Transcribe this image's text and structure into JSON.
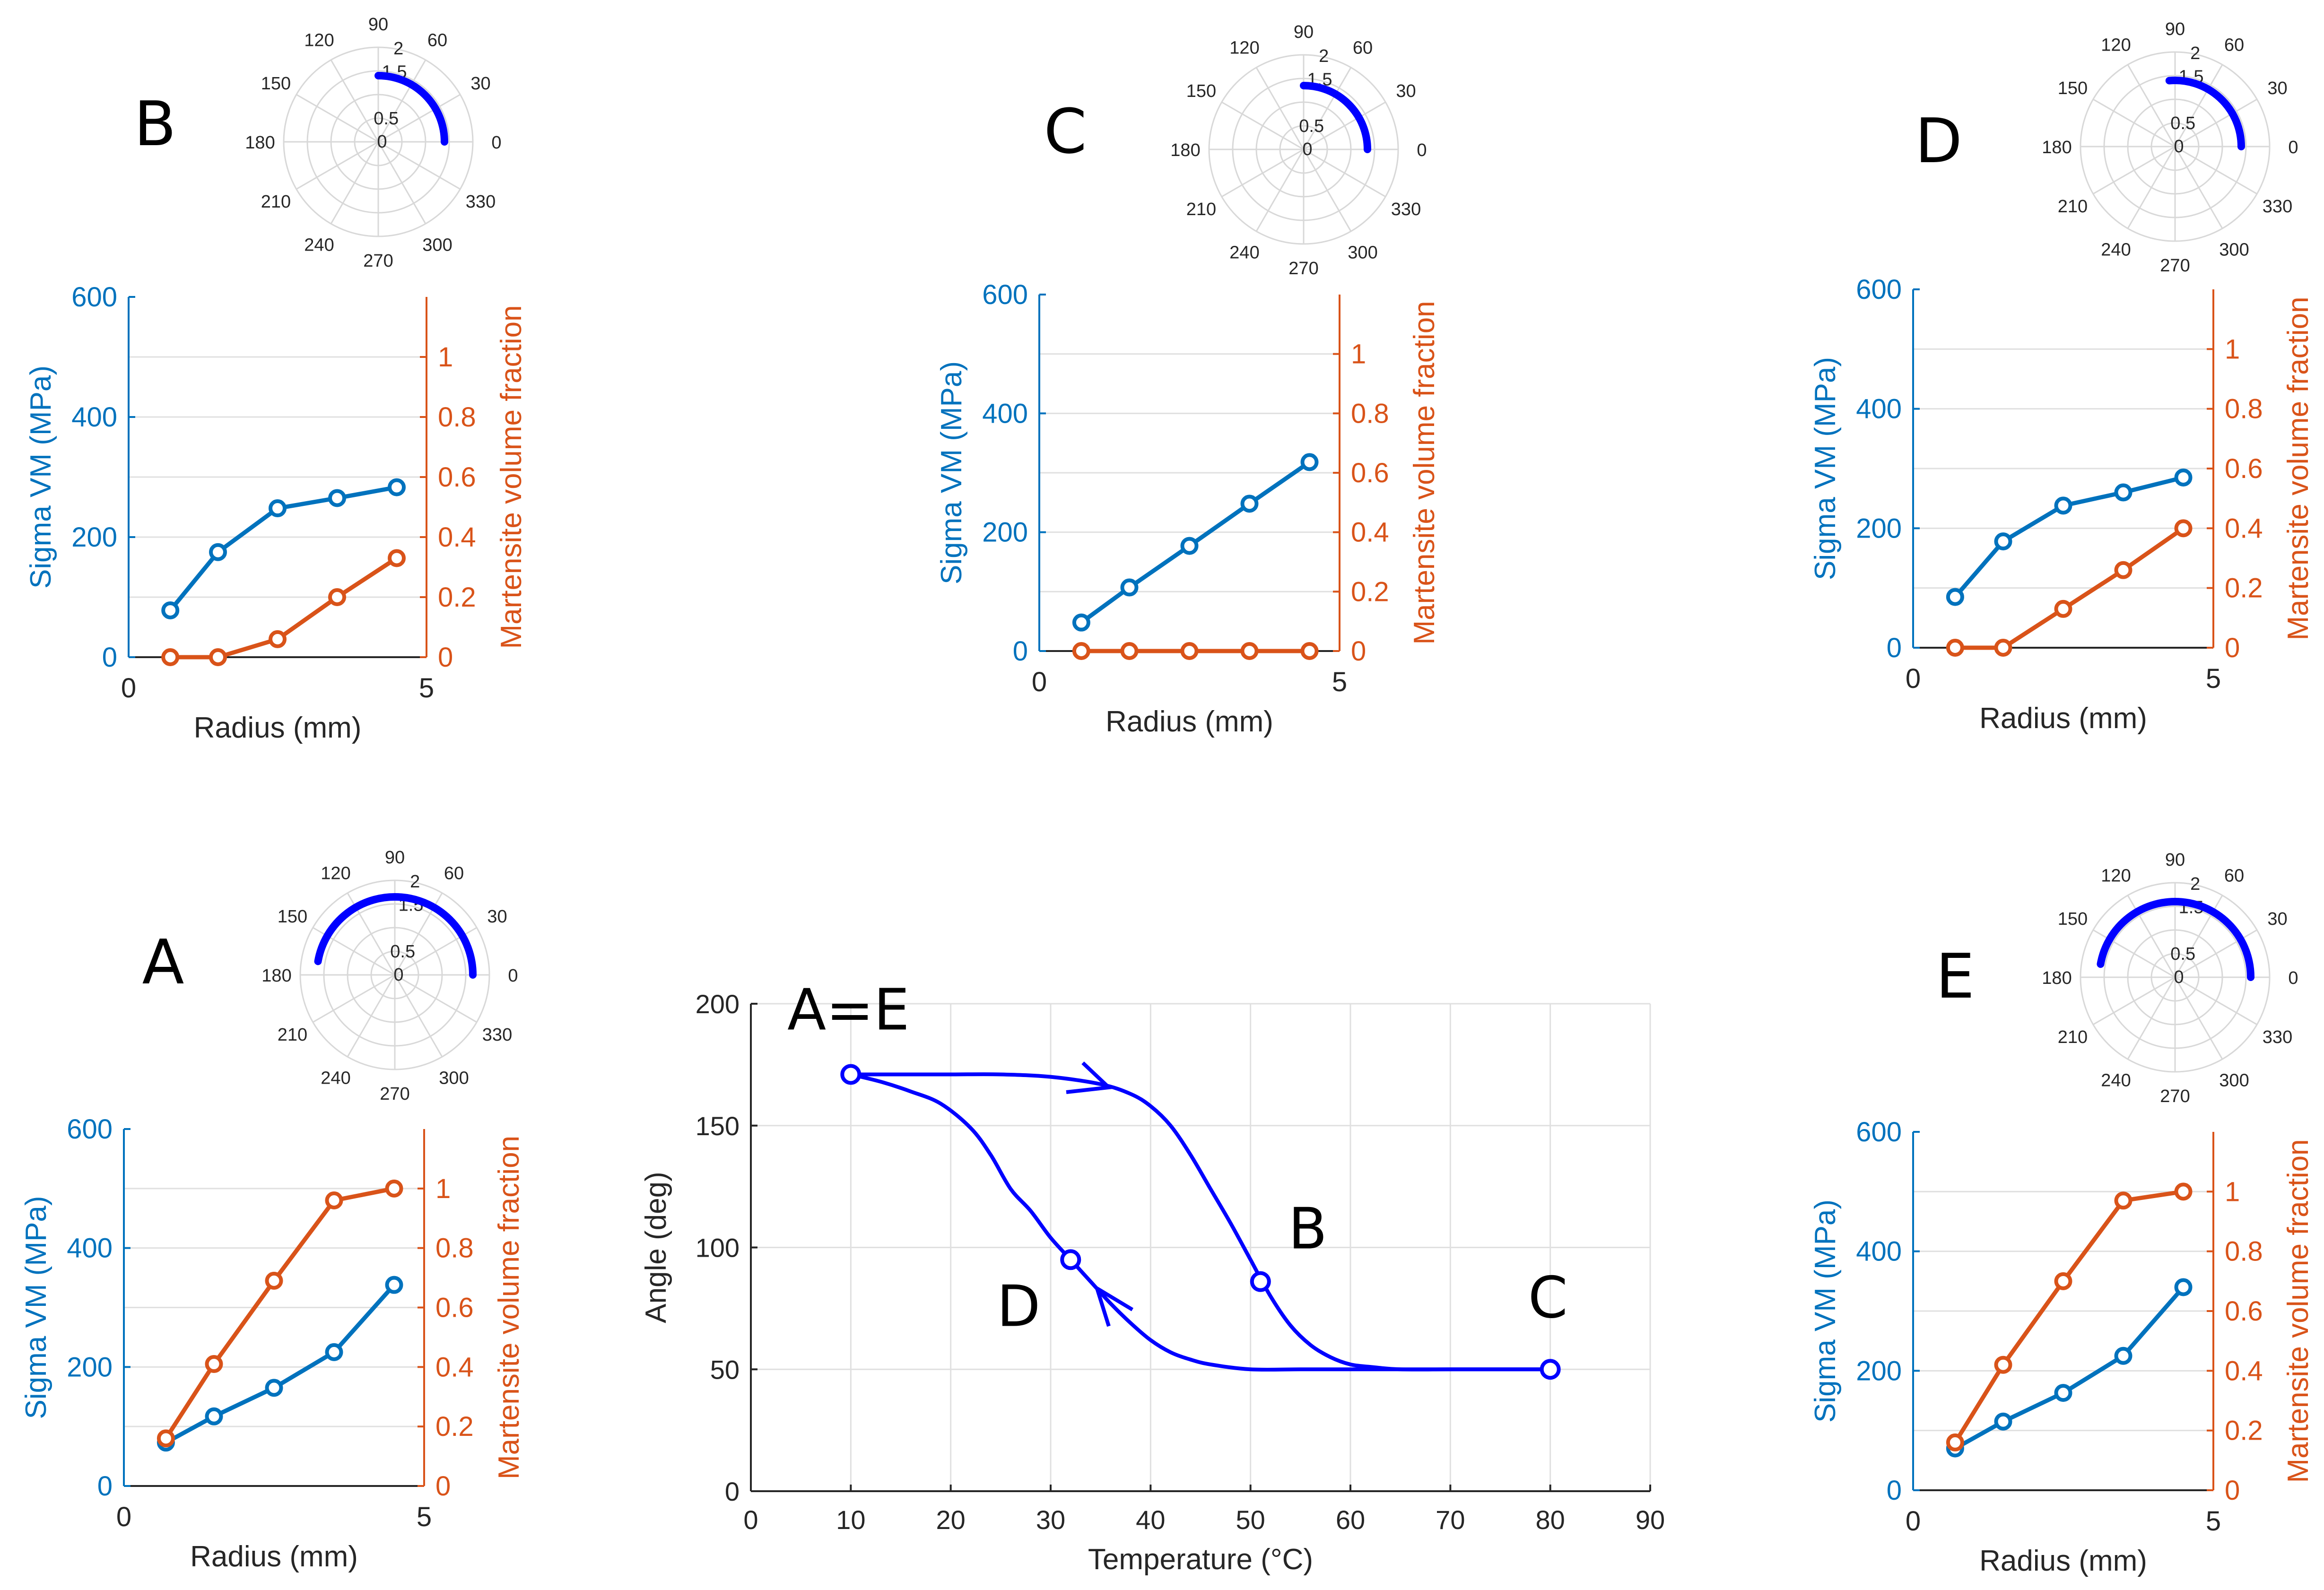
{
  "colors": {
    "sigma": "#0072BD",
    "martensite": "#D95319",
    "polar_arc": "#0000FF",
    "hysteresis": "#0000FF",
    "axis": "#262626",
    "grid": "#E0E0E0",
    "polar_grid": "#D8D8D8"
  },
  "polar_labels": {
    "angles": [
      "0",
      "30",
      "60",
      "90",
      "120",
      "150",
      "180",
      "210",
      "240",
      "270",
      "300",
      "330"
    ],
    "radii": [
      "0",
      "0.5",
      "1.5",
      "2"
    ]
  },
  "chart_data": [
    {
      "type": "line",
      "panel": "B",
      "x": [
        0.7,
        1.5,
        2.5,
        3.5,
        4.5
      ],
      "xlabel": "Radius (mm)",
      "xlim": [
        0,
        5
      ],
      "xticks": [
        "0",
        "5"
      ],
      "ylabel_left": "Sigma VM (MPa)",
      "ylim_left": [
        0,
        600
      ],
      "yticks_left": [
        "0",
        "200",
        "400",
        "600"
      ],
      "ylabel_right": "Martensite volume fraction",
      "ylim_right": [
        0,
        1.2
      ],
      "yticks_right": [
        "0",
        "0.2",
        "0.4",
        "0.6",
        "0.8",
        "1"
      ],
      "series": [
        {
          "name": "Sigma VM (MPa)",
          "axis": "left",
          "values": [
            78,
            175,
            248,
            265,
            283
          ]
        },
        {
          "name": "Martensite volume fraction",
          "axis": "right",
          "values": [
            0,
            0,
            0.06,
            0.2,
            0.33
          ]
        }
      ],
      "polar_arc": {
        "theta_deg": [
          0,
          90
        ],
        "r": 1.4
      }
    },
    {
      "type": "line",
      "panel": "C",
      "x": [
        0.7,
        1.5,
        2.5,
        3.5,
        4.5
      ],
      "xlabel": "Radius (mm)",
      "xlim": [
        0,
        5
      ],
      "xticks": [
        "0",
        "5"
      ],
      "ylabel_left": "Sigma VM (MPa)",
      "ylim_left": [
        0,
        600
      ],
      "yticks_left": [
        "0",
        "200",
        "400",
        "600"
      ],
      "ylabel_right": "Martensite volume fraction",
      "ylim_right": [
        0,
        1.2
      ],
      "yticks_right": [
        "0",
        "0.2",
        "0.4",
        "0.6",
        "0.8",
        "1"
      ],
      "series": [
        {
          "name": "Sigma VM (MPa)",
          "axis": "left",
          "values": [
            48,
            107,
            177,
            248,
            318
          ]
        },
        {
          "name": "Martensite volume fraction",
          "axis": "right",
          "values": [
            0,
            0,
            0,
            0,
            0
          ]
        }
      ],
      "polar_arc": {
        "theta_deg": [
          0,
          90
        ],
        "r": 1.35
      }
    },
    {
      "type": "line",
      "panel": "D",
      "x": [
        0.7,
        1.5,
        2.5,
        3.5,
        4.5
      ],
      "xlabel": "Radius (mm)",
      "xlim": [
        0,
        5
      ],
      "xticks": [
        "0",
        "5"
      ],
      "ylabel_left": "Sigma VM (MPa)",
      "ylim_left": [
        0,
        600
      ],
      "yticks_left": [
        "0",
        "200",
        "400",
        "600"
      ],
      "ylabel_right": "Martensite volume fraction",
      "ylim_right": [
        0,
        1.2
      ],
      "yticks_right": [
        "0",
        "0.2",
        "0.4",
        "0.6",
        "0.8",
        "1"
      ],
      "series": [
        {
          "name": "Sigma VM (MPa)",
          "axis": "left",
          "values": [
            85,
            178,
            238,
            260,
            285
          ]
        },
        {
          "name": "Martensite volume fraction",
          "axis": "right",
          "values": [
            0,
            0,
            0.13,
            0.26,
            0.4
          ]
        }
      ],
      "polar_arc": {
        "theta_deg": [
          0,
          95
        ],
        "r": 1.4
      }
    },
    {
      "type": "line",
      "panel": "A",
      "x": [
        0.7,
        1.5,
        2.5,
        3.5,
        4.5
      ],
      "xlabel": "Radius (mm)",
      "xlim": [
        0,
        5
      ],
      "xticks": [
        "0",
        "5"
      ],
      "ylabel_left": "Sigma VM (MPa)",
      "ylim_left": [
        0,
        600
      ],
      "yticks_left": [
        "0",
        "200",
        "400",
        "600"
      ],
      "ylabel_right": "Martensite volume fraction",
      "ylim_right": [
        0,
        1.2
      ],
      "yticks_right": [
        "0",
        "0.2",
        "0.4",
        "0.6",
        "0.8",
        "1"
      ],
      "series": [
        {
          "name": "Sigma VM (MPa)",
          "axis": "left",
          "values": [
            73,
            117,
            165,
            225,
            338
          ]
        },
        {
          "name": "Martensite volume fraction",
          "axis": "right",
          "values": [
            0.16,
            0.41,
            0.69,
            0.96,
            1.0
          ]
        }
      ],
      "polar_arc": {
        "theta_deg": [
          0,
          170
        ],
        "r": 1.65
      }
    },
    {
      "type": "line",
      "panel": "E",
      "x": [
        0.7,
        1.5,
        2.5,
        3.5,
        4.5
      ],
      "xlabel": "Radius (mm)",
      "xlim": [
        0,
        5
      ],
      "xticks": [
        "0",
        "5"
      ],
      "ylabel_left": "Sigma VM (MPa)",
      "ylim_left": [
        0,
        600
      ],
      "yticks_left": [
        "0",
        "200",
        "400",
        "600"
      ],
      "ylabel_right": "Martensite volume fraction",
      "ylim_right": [
        0,
        1.2
      ],
      "yticks_right": [
        "0",
        "0.2",
        "0.4",
        "0.6",
        "0.8",
        "1"
      ],
      "series": [
        {
          "name": "Sigma VM (MPa)",
          "axis": "left",
          "values": [
            70,
            115,
            163,
            225,
            340
          ]
        },
        {
          "name": "Martensite volume fraction",
          "axis": "right",
          "values": [
            0.16,
            0.42,
            0.7,
            0.97,
            1.0
          ]
        }
      ],
      "polar_arc": {
        "theta_deg": [
          0,
          170
        ],
        "r": 1.6
      }
    },
    {
      "type": "line",
      "panel": "hysteresis",
      "xlabel": "Temperature (°C)",
      "ylabel": "Angle (deg)",
      "xlim": [
        0,
        90
      ],
      "ylim": [
        0,
        200
      ],
      "xticks": [
        "0",
        "10",
        "20",
        "30",
        "40",
        "50",
        "60",
        "70",
        "80",
        "90"
      ],
      "yticks": [
        "0",
        "50",
        "100",
        "150",
        "200"
      ],
      "grid": true,
      "series": [
        {
          "x": [
            10,
            15,
            20,
            25,
            30,
            35,
            38,
            40,
            42,
            44,
            46,
            48,
            50,
            52,
            54,
            56,
            58,
            60,
            62,
            65,
            70,
            75,
            80
          ],
          "y": [
            171,
            171,
            171,
            171,
            170,
            167,
            163,
            158,
            150,
            138,
            124,
            110,
            95,
            80,
            68,
            60,
            55,
            52,
            51,
            50,
            50,
            50,
            50
          ]
        },
        {
          "x": [
            10,
            13,
            16,
            19,
            22,
            24,
            26,
            28,
            30,
            32,
            34,
            36,
            38,
            40,
            42,
            44,
            46,
            50,
            55,
            60,
            70,
            80
          ],
          "y": [
            171,
            168,
            164,
            159,
            149,
            138,
            124,
            115,
            104,
            95,
            86,
            77,
            69,
            62,
            57,
            54,
            52,
            50,
            50,
            50,
            50,
            50
          ]
        }
      ],
      "markers": [
        {
          "label": "A=E",
          "x": 10,
          "y": 171
        },
        {
          "label": "B",
          "x": 51,
          "y": 86
        },
        {
          "label": "C",
          "x": 80,
          "y": 50
        },
        {
          "label": "D",
          "x": 32,
          "y": 95
        }
      ]
    }
  ]
}
